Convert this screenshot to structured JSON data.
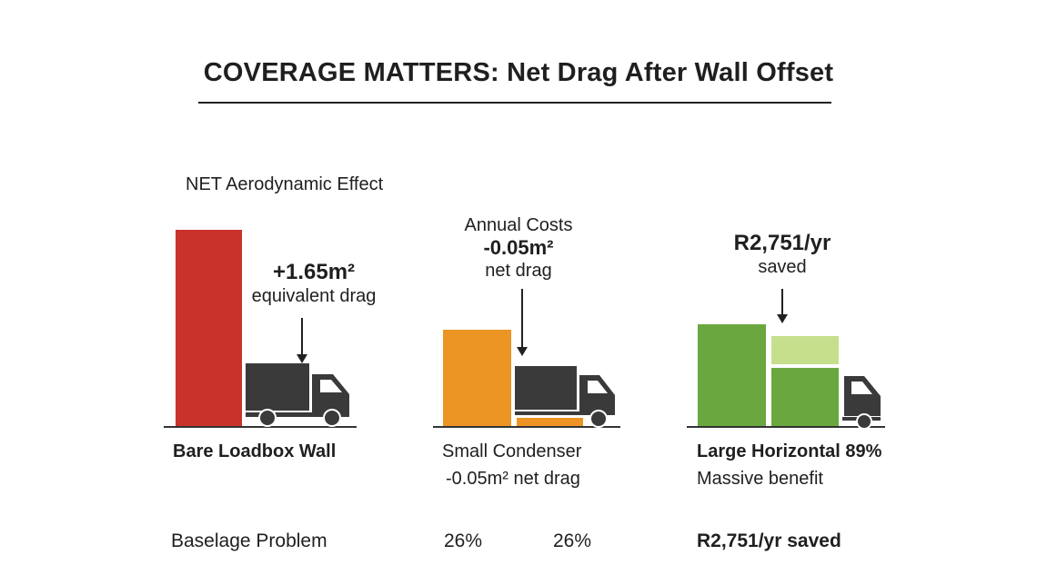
{
  "title": "COVERAGE MATTERS: Net Drag After Wall Offset",
  "section_label": "NET Aerodynamic Effect",
  "colors": {
    "red": "#c9322b",
    "orange": "#ec9424",
    "green": "#6aa83f",
    "light_green": "#c6df8c",
    "truck": "#3a3a3a"
  },
  "panels": [
    {
      "callout_value": "+1.65m²",
      "callout_text": "equivalent drag",
      "label": "Bare Loadbox Wall",
      "footer": "Baselage Problem"
    },
    {
      "callout_heading": "Annual Costs",
      "callout_value": "-0.05m²",
      "callout_text": "net drag",
      "label": "Small Condenser",
      "sublabel": "-0.05m² net drag",
      "footer_a": "26%",
      "footer_b": "26%"
    },
    {
      "callout_value": "R2,751/yr",
      "callout_text": "saved",
      "label": "Large Horizontal 89%",
      "sublabel": "Massive benefit",
      "footer": "R2,751/yr saved"
    }
  ]
}
